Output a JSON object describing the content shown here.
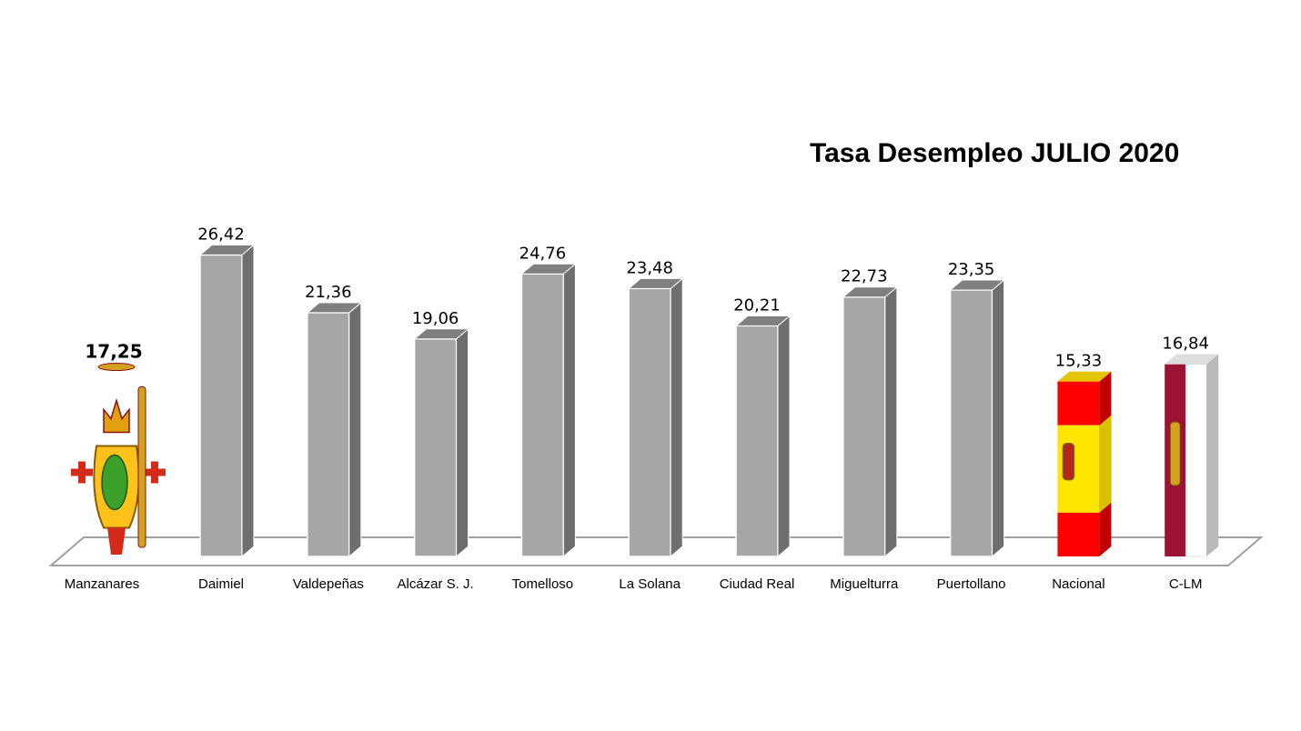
{
  "chart_data": {
    "type": "bar",
    "title": "Tasa Desempleo JULIO 2020",
    "categories": [
      "Manzanares",
      "Daimiel",
      "Valdepeñas",
      "Alcázar S. J.",
      "Tomelloso",
      "La Solana",
      "Ciudad Real",
      "Miguelturra",
      "Puertollano",
      "Nacional",
      "C-LM"
    ],
    "values": [
      17.25,
      26.42,
      21.36,
      19.06,
      24.76,
      23.48,
      20.21,
      22.73,
      23.35,
      15.33,
      16.84
    ],
    "value_labels": [
      "17,25",
      "26,42",
      "21,36",
      "19,06",
      "24,76",
      "23,48",
      "20,21",
      "22,73",
      "23,35",
      "15,33",
      "16,84"
    ],
    "highlighted_category": "Manzanares",
    "bar_fills": [
      "coat-of-arms",
      "gray",
      "gray",
      "gray",
      "gray",
      "gray",
      "gray",
      "gray",
      "gray",
      "flag-spain",
      "flag-castilla-la-mancha"
    ],
    "ylim": [
      0,
      30
    ],
    "grid": false,
    "legend": "none",
    "colors": {
      "bar_front": "#a6a6a6",
      "bar_side": "#6e6e6e",
      "bar_top": "#7f7f7f",
      "floor_line": "#a0a0a0",
      "spain_red": "#ff0000",
      "spain_yellow": "#ffe600",
      "clm_crimson": "#9c1333",
      "clm_white": "#ffffff"
    }
  }
}
